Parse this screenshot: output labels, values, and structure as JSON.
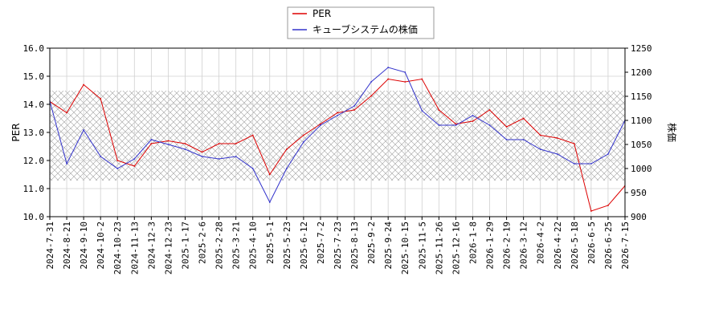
{
  "chart_data": {
    "type": "line",
    "xlabel": "",
    "ylabel_left": "PER",
    "ylabel_right": "株価",
    "ylim_left": [
      10.0,
      16.0
    ],
    "ylim_right": [
      900,
      1250
    ],
    "yticks_left": [
      "10.0",
      "11.0",
      "12.0",
      "13.0",
      "14.0",
      "15.0",
      "16.0"
    ],
    "yticks_right": [
      "900",
      "950",
      "1000",
      "1050",
      "1100",
      "1150",
      "1200",
      "1250"
    ],
    "grid": true,
    "legend_position": "top-center",
    "x_dates": [
      "2024-7-31",
      "2024-8-21",
      "2024-9-10",
      "2024-10-2",
      "2024-10-23",
      "2024-11-13",
      "2024-12-3",
      "2024-12-23",
      "2025-1-17",
      "2025-2-6",
      "2025-2-28",
      "2025-3-21",
      "2025-4-10",
      "2025-5-1",
      "2025-5-23",
      "2025-6-12",
      "2025-7-2",
      "2025-7-23",
      "2025-8-13",
      "2025-9-2",
      "2025-9-24",
      "2025-10-15",
      "2025-11-5",
      "2025-11-26",
      "2025-12-16",
      "2026-1-8",
      "2026-1-29",
      "2026-2-19",
      "2026-3-12",
      "2026-4-2",
      "2026-4-22",
      "2026-5-18",
      "2026-6-5",
      "2026-6-25",
      "2026-7-15"
    ],
    "series": [
      {
        "name": "PER",
        "color": "#dd0000",
        "axis": "left",
        "values": [
          14.1,
          13.7,
          14.7,
          14.2,
          12.0,
          11.8,
          12.6,
          12.7,
          12.6,
          12.3,
          12.6,
          12.6,
          12.9,
          11.5,
          12.4,
          12.9,
          13.3,
          13.7,
          13.8,
          14.3,
          14.9,
          14.8,
          14.9,
          13.8,
          13.3,
          13.4,
          13.8,
          13.2,
          13.5,
          12.9,
          12.8,
          12.6,
          10.2,
          10.4,
          11.1
        ]
      },
      {
        "name": "キューブシステムの株価",
        "color": "#3333cc",
        "axis": "right",
        "values": [
          1140,
          1010,
          1080,
          1025,
          1000,
          1020,
          1060,
          1050,
          1040,
          1025,
          1020,
          1025,
          1000,
          930,
          1000,
          1055,
          1090,
          1110,
          1130,
          1180,
          1210,
          1200,
          1120,
          1090,
          1090,
          1110,
          1090,
          1060,
          1060,
          1040,
          1030,
          1010,
          1010,
          1030,
          1100
        ]
      }
    ]
  }
}
